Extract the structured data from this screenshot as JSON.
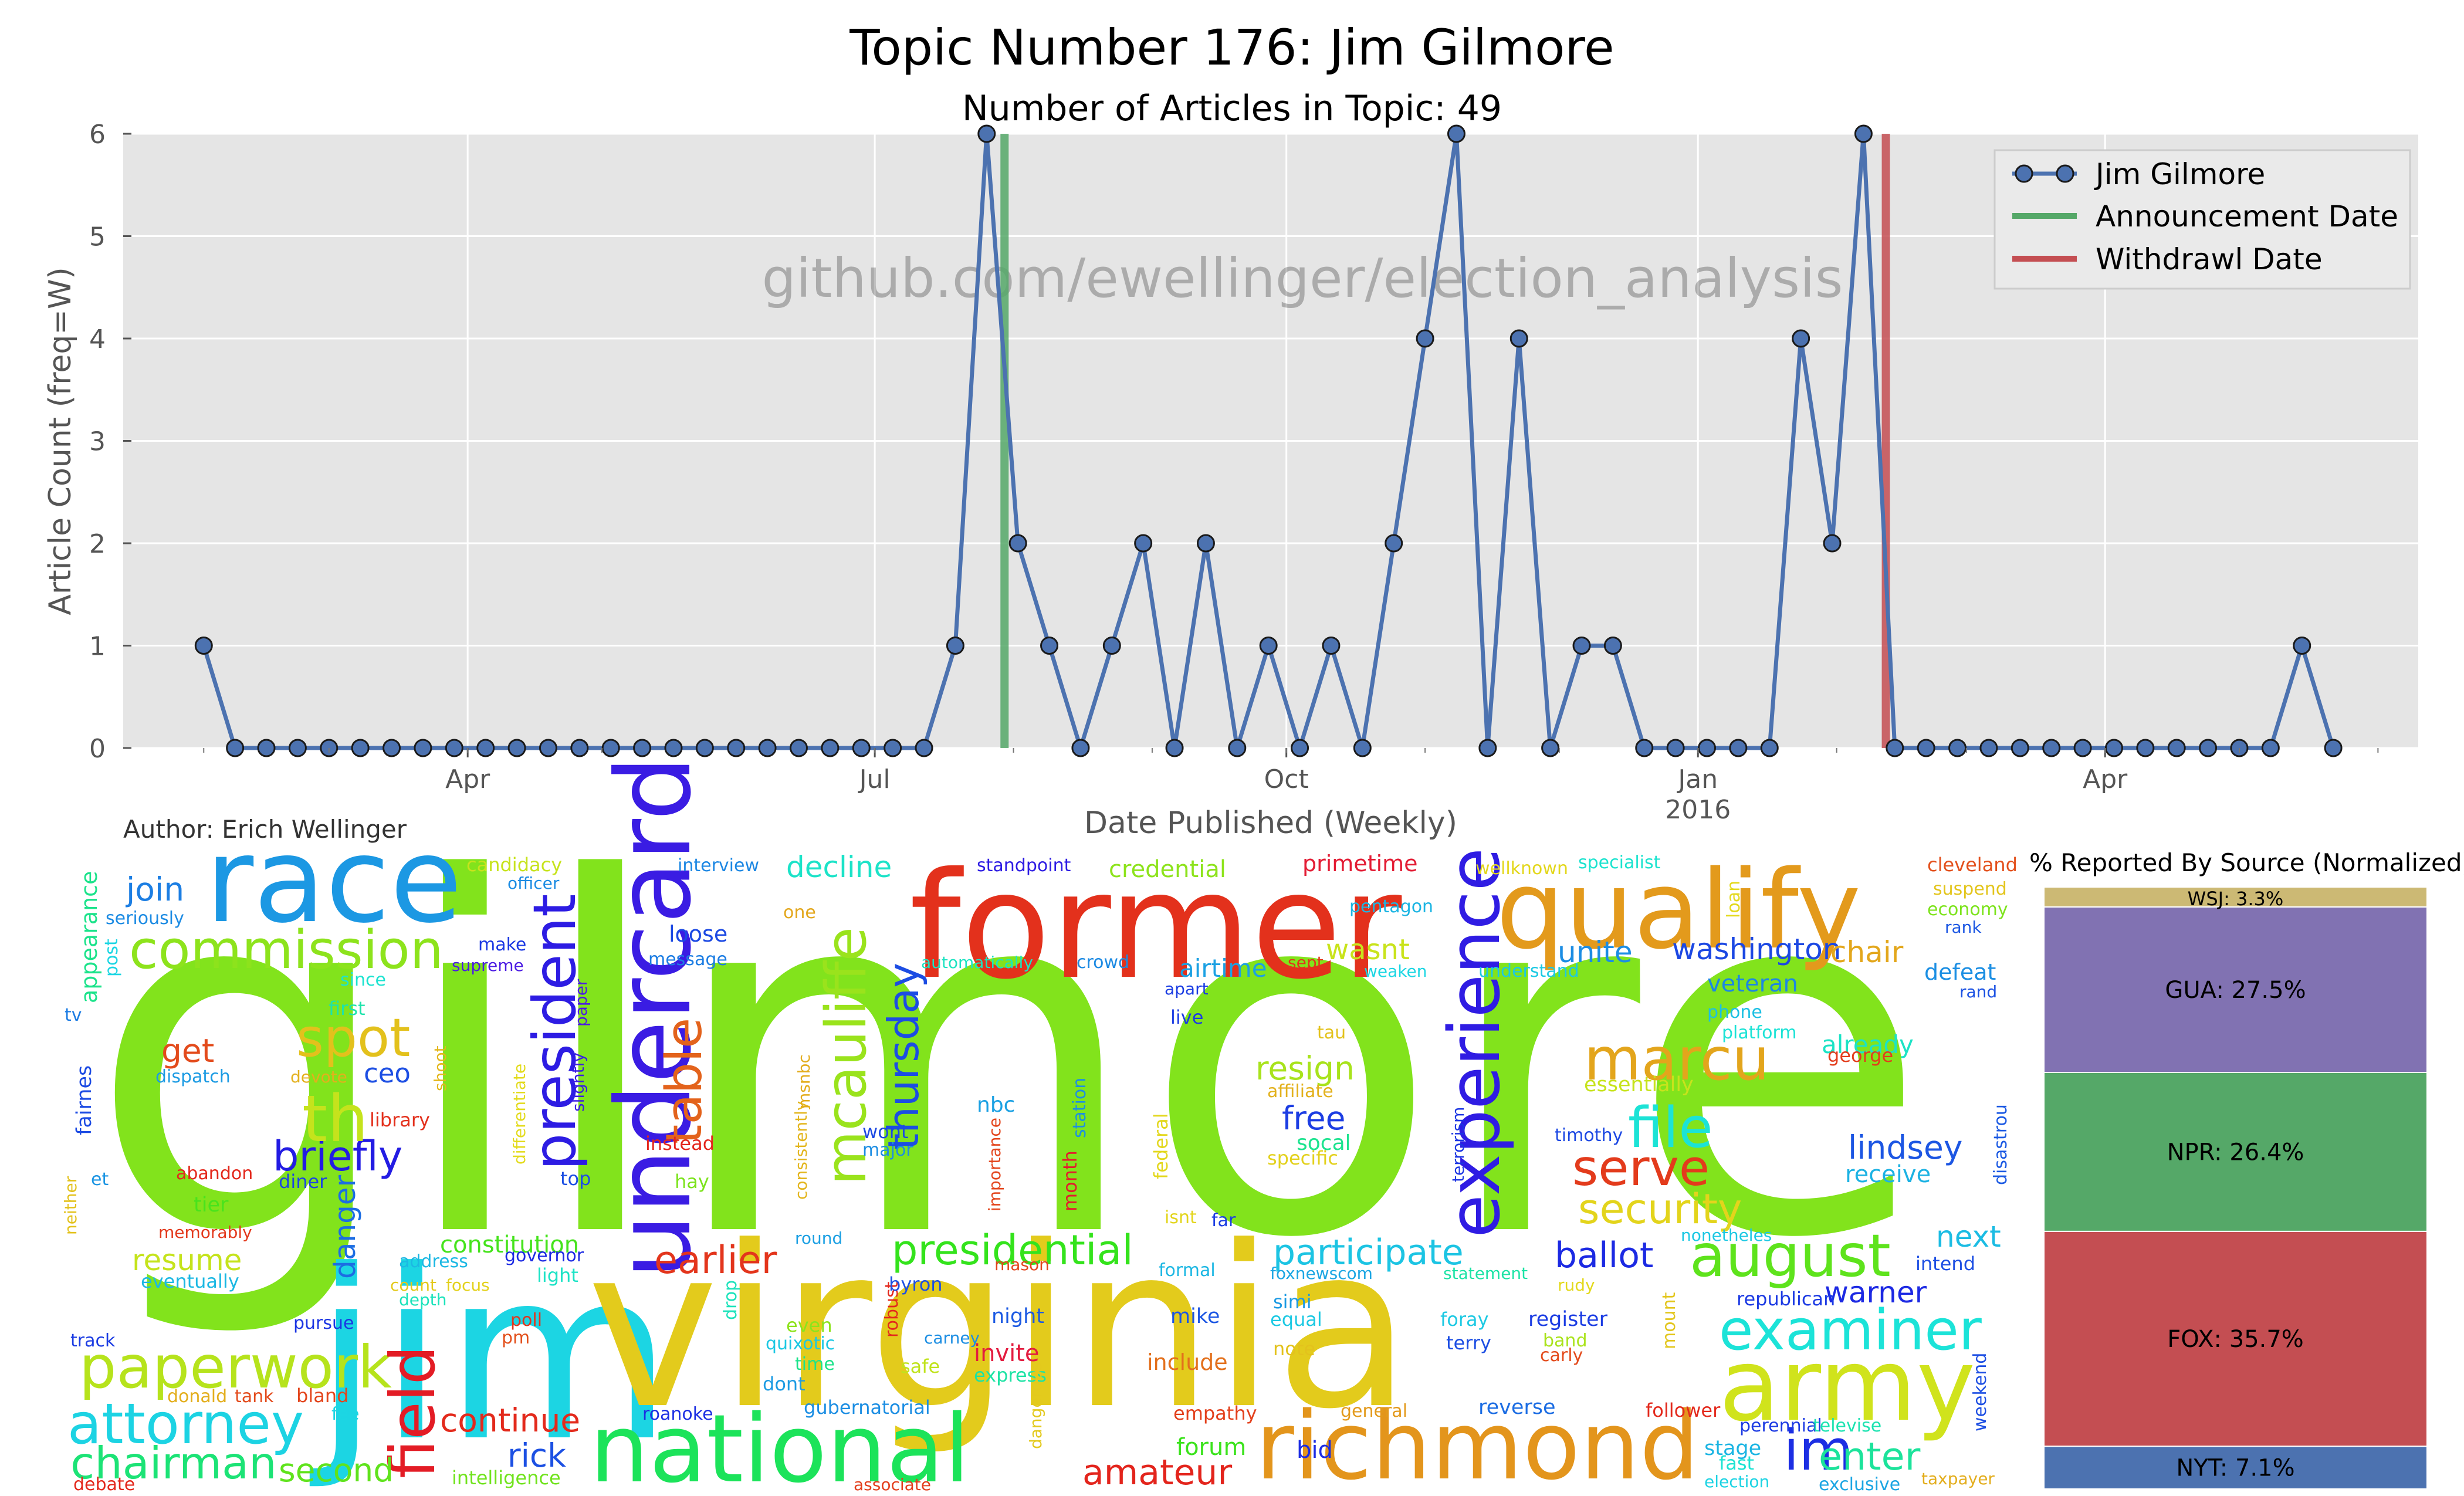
{
  "chart_data": [
    {
      "type": "line",
      "title": "Topic Number 176: Jim Gilmore",
      "subtitle": "Number of Articles in Topic: 49",
      "watermark": "github.com/ewellinger/election_analysis",
      "xlabel": "Date Published (Weekly)",
      "ylabel": "Article Count (freq=W)",
      "ylim": [
        0,
        6
      ],
      "yticks": [
        "0",
        "1",
        "2",
        "3",
        "4",
        "5",
        "6"
      ],
      "xlim": [
        "2015-01-14",
        "2016-06-10"
      ],
      "xticks": [
        {
          "date": "2015-04-01",
          "label": "Apr",
          "sublabel": ""
        },
        {
          "date": "2015-07-01",
          "label": "Jul",
          "sublabel": ""
        },
        {
          "date": "2015-10-01",
          "label": "Oct",
          "sublabel": ""
        },
        {
          "date": "2016-01-01",
          "label": "Jan",
          "sublabel": "2016"
        },
        {
          "date": "2016-04-01",
          "label": "Apr",
          "sublabel": ""
        }
      ],
      "grid": true,
      "legend_position": "top-right",
      "series": [
        {
          "name": "Jim Gilmore",
          "color": "#4c72b0",
          "x": [
            "2015-02-01",
            "2015-02-08",
            "2015-02-15",
            "2015-02-22",
            "2015-03-01",
            "2015-03-08",
            "2015-03-15",
            "2015-03-22",
            "2015-03-29",
            "2015-04-05",
            "2015-04-12",
            "2015-04-19",
            "2015-04-26",
            "2015-05-03",
            "2015-05-10",
            "2015-05-17",
            "2015-05-24",
            "2015-05-31",
            "2015-06-07",
            "2015-06-14",
            "2015-06-21",
            "2015-06-28",
            "2015-07-05",
            "2015-07-12",
            "2015-07-19",
            "2015-07-26",
            "2015-08-02",
            "2015-08-09",
            "2015-08-16",
            "2015-08-23",
            "2015-08-30",
            "2015-09-06",
            "2015-09-13",
            "2015-09-20",
            "2015-09-27",
            "2015-10-04",
            "2015-10-11",
            "2015-10-18",
            "2015-10-25",
            "2015-11-01",
            "2015-11-08",
            "2015-11-15",
            "2015-11-22",
            "2015-11-29",
            "2015-12-06",
            "2015-12-13",
            "2015-12-20",
            "2015-12-27",
            "2016-01-03",
            "2016-01-10",
            "2016-01-17",
            "2016-01-24",
            "2016-01-31",
            "2016-02-07",
            "2016-02-14",
            "2016-02-21",
            "2016-02-28",
            "2016-03-06",
            "2016-03-13",
            "2016-03-20",
            "2016-03-27",
            "2016-04-03",
            "2016-04-10",
            "2016-04-17",
            "2016-04-24",
            "2016-05-01",
            "2016-05-08",
            "2016-05-15",
            "2016-05-22"
          ],
          "values": [
            1,
            0,
            0,
            0,
            0,
            0,
            0,
            0,
            0,
            0,
            0,
            0,
            0,
            0,
            0,
            0,
            0,
            0,
            0,
            0,
            0,
            0,
            0,
            0,
            1,
            6,
            2,
            1,
            0,
            1,
            2,
            0,
            2,
            0,
            1,
            0,
            1,
            0,
            2,
            4,
            6,
            0,
            4,
            0,
            1,
            1,
            0,
            0,
            0,
            0,
            0,
            4,
            2,
            6,
            0,
            0,
            0,
            0,
            0,
            0,
            0,
            0,
            0,
            0,
            0,
            0,
            0,
            1,
            0
          ]
        }
      ],
      "events": [
        {
          "name": "Announcement Date",
          "date": "2015-07-30",
          "color": "#55a868"
        },
        {
          "name": "Withdrawl Date",
          "date": "2016-02-12",
          "color": "#c44e52"
        }
      ]
    },
    {
      "type": "bar",
      "title": "% Reported By Source (Normalized)",
      "categories": [
        "NYT",
        "FOX",
        "NPR",
        "GUA",
        "WSJ"
      ],
      "values": [
        7.1,
        35.7,
        26.4,
        27.5,
        3.3
      ],
      "labels": [
        "NYT: 7.1%",
        "FOX: 35.7%",
        "NPR: 26.4%",
        "GUA: 27.5%",
        "WSJ: 3.3%"
      ],
      "colors": [
        "#4c72b0",
        "#c44e52",
        "#55a868",
        "#8172b2",
        "#ccb974"
      ],
      "stacked": true
    }
  ],
  "author": "Author: Erich Wellinger",
  "wordcloud": {
    "words": [
      {
        "t": "gilmore",
        "c": "#82e31c"
      },
      {
        "t": "jim",
        "c": "#1cd5e3"
      },
      {
        "t": "virginia",
        "c": "#e3cb1c"
      },
      {
        "t": "former",
        "c": "#e3311c"
      },
      {
        "t": "race",
        "c": "#1c98e3"
      },
      {
        "t": "qualify",
        "c": "#e39a1c"
      },
      {
        "t": "national",
        "c": "#1ce35a"
      },
      {
        "t": "undercard",
        "c": "#3a1ce3"
      },
      {
        "t": "army",
        "c": "#d0e31c"
      },
      {
        "t": "richmond",
        "c": "#e3951c"
      },
      {
        "t": "experience",
        "c": "#2f1ce3"
      },
      {
        "t": "commission",
        "c": "#8de31c"
      },
      {
        "t": "president",
        "c": "#2d1ce3"
      },
      {
        "t": "mcauliffe",
        "c": "#9ae31c"
      },
      {
        "t": "marcu",
        "c": "#e3a51c"
      },
      {
        "t": "august",
        "c": "#5ee31c"
      },
      {
        "t": "examiner",
        "c": "#1ce3d8"
      },
      {
        "t": "paperwork",
        "c": "#b6e31c"
      },
      {
        "t": "attorney",
        "c": "#1cd3e3"
      },
      {
        "t": "chairman",
        "c": "#1ce376"
      },
      {
        "t": "field",
        "c": "#e31c25"
      },
      {
        "t": "spot",
        "c": "#e3c11c"
      },
      {
        "t": "table",
        "c": "#e3631c"
      },
      {
        "t": "thursday",
        "c": "#1c4de3"
      },
      {
        "t": "serve",
        "c": "#e33b1c"
      },
      {
        "t": "file",
        "c": "#1ce3d6"
      },
      {
        "t": "security",
        "c": "#e3d41c"
      },
      {
        "t": "presidential",
        "c": "#34e31c"
      },
      {
        "t": "briefly",
        "c": "#231ce3"
      },
      {
        "t": "th",
        "c": "#c5e31c"
      },
      {
        "t": "earlier",
        "c": "#e3351c"
      },
      {
        "t": "participate",
        "c": "#1cc4e3"
      },
      {
        "t": "im",
        "c": "#1c2ee3"
      },
      {
        "t": "enter",
        "c": "#1ce39b"
      },
      {
        "t": "amateur",
        "c": "#e3241c"
      },
      {
        "t": "continue",
        "c": "#e32a1c"
      },
      {
        "t": "rick",
        "c": "#1c50e3"
      },
      {
        "t": "second",
        "c": "#5fe31c"
      },
      {
        "t": "ballot",
        "c": "#1c2ae3"
      },
      {
        "t": "lindsey",
        "c": "#1c56e3"
      },
      {
        "t": "resign",
        "c": "#a8e31c"
      },
      {
        "t": "free",
        "c": "#1c3de3"
      },
      {
        "t": "warner",
        "c": "#1c29e3"
      },
      {
        "t": "next",
        "c": "#1cbce3"
      },
      {
        "t": "decline",
        "c": "#1ce3c8"
      },
      {
        "t": "join",
        "c": "#1c7ee3"
      },
      {
        "t": "get",
        "c": "#e34b1c"
      },
      {
        "t": "ceo",
        "c": "#1c4ee3"
      },
      {
        "t": "washington",
        "c": "#1c48e3"
      },
      {
        "t": "unite",
        "c": "#1c8de3"
      },
      {
        "t": "chair",
        "c": "#e3a71c"
      },
      {
        "t": "resume",
        "c": "#c5e31c"
      },
      {
        "t": "constitution",
        "c": "#45e31c"
      },
      {
        "t": "danger",
        "c": "#1c6de3"
      },
      {
        "t": "invite",
        "c": "#e31c3f"
      },
      {
        "t": "include",
        "c": "#e3701c"
      },
      {
        "t": "airtime",
        "c": "#1ca1e3"
      },
      {
        "t": "credential",
        "c": "#8de31c"
      },
      {
        "t": "primetime",
        "c": "#e31c34"
      },
      {
        "t": "already",
        "c": "#1ce3c5"
      },
      {
        "t": "receive",
        "c": "#1cb2e3"
      },
      {
        "t": "forum",
        "c": "#3be31c"
      },
      {
        "t": "veteran",
        "c": "#1c87e3"
      },
      {
        "t": "loose",
        "c": "#1c49e3"
      },
      {
        "t": "wasnt",
        "c": "#c9e31c"
      },
      {
        "t": "defeat",
        "c": "#1c8fe3"
      },
      {
        "t": "stage",
        "c": "#1cb5e3"
      },
      {
        "t": "bid",
        "c": "#1c2ce3"
      },
      {
        "t": "essentially",
        "c": "#c7e31c"
      },
      {
        "t": "republican",
        "c": "#1c3ae3"
      },
      {
        "t": "appearance",
        "c": "#1ce38b"
      },
      {
        "t": "candidacy",
        "c": "#c7e31c"
      },
      {
        "t": "interview",
        "c": "#1c87e3"
      },
      {
        "t": "standpoint",
        "c": "#2d1ce3"
      },
      {
        "t": "wellknown",
        "c": "#e3d71c"
      },
      {
        "t": "specialist",
        "c": "#1ce3cf"
      },
      {
        "t": "cleveland",
        "c": "#e3501c"
      },
      {
        "t": "suspend",
        "c": "#e3c51c"
      },
      {
        "t": "economy",
        "c": "#7de31c"
      },
      {
        "t": "one",
        "c": "#e3a71c"
      },
      {
        "t": "loan",
        "c": "#e3d91c"
      },
      {
        "t": "pentagon",
        "c": "#1cb5e3"
      },
      {
        "t": "officer",
        "c": "#1c8ce3"
      },
      {
        "t": "seriously",
        "c": "#1c8be3"
      },
      {
        "t": "make",
        "c": "#1c39e3"
      },
      {
        "t": "message",
        "c": "#1c7de3"
      },
      {
        "t": "automatically",
        "c": "#1ce3c1"
      },
      {
        "t": "crowd",
        "c": "#1c8ae3"
      },
      {
        "t": "sept",
        "c": "#e3351c"
      },
      {
        "t": "weaken",
        "c": "#1cd6e3"
      },
      {
        "t": "understand",
        "c": "#1cc9e3"
      },
      {
        "t": "rank",
        "c": "#1c57e3"
      },
      {
        "t": "rand",
        "c": "#1c52e3"
      },
      {
        "t": "post",
        "c": "#1cd6e3"
      },
      {
        "t": "supreme",
        "c": "#4c1ce3"
      },
      {
        "t": "since",
        "c": "#1ce3d0"
      },
      {
        "t": "paper",
        "c": "#4d1ce3"
      },
      {
        "t": "apart",
        "c": "#1c3ee3"
      },
      {
        "t": "phone",
        "c": "#1cc0e3"
      },
      {
        "t": "platform",
        "c": "#1ce3d6"
      },
      {
        "t": "tv",
        "c": "#1c7ce3"
      },
      {
        "t": "first",
        "c": "#1ce3ab"
      },
      {
        "t": "live",
        "c": "#1c3ce3"
      },
      {
        "t": "tau",
        "c": "#e3c21c"
      },
      {
        "t": "george",
        "c": "#e33d1c"
      },
      {
        "t": "dispatch",
        "c": "#1c9be3"
      },
      {
        "t": "devote",
        "c": "#e3b01c"
      },
      {
        "t": "shoot",
        "c": "#e3b71c"
      },
      {
        "t": "differentiate",
        "c": "#e3db1c"
      },
      {
        "t": "slightly",
        "c": "#3a1ce3"
      },
      {
        "t": "station",
        "c": "#1c8fe3"
      },
      {
        "t": "affiliate",
        "c": "#e3b11c"
      },
      {
        "t": "terrorism",
        "c": "#1c36e3"
      },
      {
        "t": "timothy",
        "c": "#1c48e3"
      },
      {
        "t": "fairnes",
        "c": "#1c4be3"
      },
      {
        "t": "library",
        "c": "#e3301c"
      },
      {
        "t": "nbc",
        "c": "#1ca1e3"
      },
      {
        "t": "socal",
        "c": "#1ce38f"
      },
      {
        "t": "specific",
        "c": "#e3d11c"
      },
      {
        "t": "disastrou",
        "c": "#1c5ae3"
      },
      {
        "t": "instead",
        "c": "#e3261c"
      },
      {
        "t": "wont",
        "c": "#1c49e3"
      },
      {
        "t": "major",
        "c": "#1c8de3"
      },
      {
        "t": "consistently",
        "c": "#e3b51c"
      },
      {
        "t": "msnbc",
        "c": "#e3ac1c"
      },
      {
        "t": "importance",
        "c": "#e3451c"
      },
      {
        "t": "month",
        "c": "#e31c2d"
      },
      {
        "t": "federal",
        "c": "#e3d71c"
      },
      {
        "t": "abandon",
        "c": "#e3281c"
      },
      {
        "t": "diner",
        "c": "#1c46e3"
      },
      {
        "t": "top",
        "c": "#1c4fe3"
      },
      {
        "t": "hay",
        "c": "#7ce31c"
      },
      {
        "t": "et",
        "c": "#1c95e3"
      },
      {
        "t": "neither",
        "c": "#e3c21c"
      },
      {
        "t": "isnt",
        "c": "#e3d51c"
      },
      {
        "t": "far",
        "c": "#1c3ee3"
      },
      {
        "t": "memorably",
        "c": "#e3391c"
      },
      {
        "t": "tier",
        "c": "#49e31c"
      },
      {
        "t": "address",
        "c": "#1cb8e3"
      },
      {
        "t": "governor",
        "c": "#1c2ae3"
      },
      {
        "t": "eventually",
        "c": "#1cb8e3"
      },
      {
        "t": "round",
        "c": "#1ca0e3"
      },
      {
        "t": "mason",
        "c": "#e3451c"
      },
      {
        "t": "formal",
        "c": "#1cb7e3"
      },
      {
        "t": "foxnewscom",
        "c": "#1ca6e3"
      },
      {
        "t": "statement",
        "c": "#1ce3a5"
      },
      {
        "t": "nonetheles",
        "c": "#1cc8e3"
      },
      {
        "t": "intend",
        "c": "#1c4ee3"
      },
      {
        "t": "count",
        "c": "#e3c91c"
      },
      {
        "t": "focus",
        "c": "#e3d11c"
      },
      {
        "t": "light",
        "c": "#1ce3c6"
      },
      {
        "t": "depth",
        "c": "#1ce3bb"
      },
      {
        "t": "poll",
        "c": "#e3351c"
      },
      {
        "t": "robust",
        "c": "#e3281c"
      },
      {
        "t": "byron",
        "c": "#1c4fe3"
      },
      {
        "t": "drop",
        "c": "#1ce3bb"
      },
      {
        "t": "night",
        "c": "#1c5ae3"
      },
      {
        "t": "mike",
        "c": "#1c56e3"
      },
      {
        "t": "simi",
        "c": "#1c9ae3"
      },
      {
        "t": "foray",
        "c": "#1cc9e3"
      },
      {
        "t": "register",
        "c": "#1c3de3"
      },
      {
        "t": "rudy",
        "c": "#e3d91c"
      },
      {
        "t": "track",
        "c": "#1c3de3"
      },
      {
        "t": "pm",
        "c": "#e3501c"
      },
      {
        "t": "even",
        "c": "#8de31c"
      },
      {
        "t": "carney",
        "c": "#1c8ee3"
      },
      {
        "t": "equal",
        "c": "#1cc9e3"
      },
      {
        "t": "terry",
        "c": "#1c4ee3"
      },
      {
        "t": "band",
        "c": "#aae31c"
      },
      {
        "t": "carly",
        "c": "#e34b1c"
      },
      {
        "t": "mount",
        "c": "#e3c61c"
      },
      {
        "t": "quixotic",
        "c": "#1cc8e3"
      },
      {
        "t": "safe",
        "c": "#c0e31c"
      },
      {
        "t": "express",
        "c": "#1ce3a4"
      },
      {
        "t": "note",
        "c": "#e3c21c"
      },
      {
        "t": "donald",
        "c": "#e3ae1c"
      },
      {
        "t": "tank",
        "c": "#e34b1c"
      },
      {
        "t": "bland",
        "c": "#e3451c"
      },
      {
        "t": "time",
        "c": "#1ce38b"
      },
      {
        "t": "dont",
        "c": "#1c9be3"
      },
      {
        "t": "empathy",
        "c": "#e3401c"
      },
      {
        "t": "fee",
        "c": "#1cd6e3"
      },
      {
        "t": "pursue",
        "c": "#1c36e3"
      },
      {
        "t": "gubernatorial",
        "c": "#1c8ee3"
      },
      {
        "t": "general",
        "c": "#e39a1c"
      },
      {
        "t": "reverse",
        "c": "#1c6de3"
      },
      {
        "t": "follower",
        "c": "#e3291c"
      },
      {
        "t": "perennial",
        "c": "#1c3ae3"
      },
      {
        "t": "televise",
        "c": "#1ce3b1"
      },
      {
        "t": "weekend",
        "c": "#1c4ee3"
      },
      {
        "t": "roanoke",
        "c": "#1c2fe3"
      },
      {
        "t": "dangerous",
        "c": "#e3c91c"
      },
      {
        "t": "fast",
        "c": "#1ce3d3"
      },
      {
        "t": "intelligence",
        "c": "#70e31c"
      },
      {
        "t": "debate",
        "c": "#e3281c"
      },
      {
        "t": "associate",
        "c": "#e33e1c"
      },
      {
        "t": "election",
        "c": "#1cd3e3"
      },
      {
        "t": "exclusive",
        "c": "#1ca6e3"
      },
      {
        "t": "taxpayer",
        "c": "#e3ad1c"
      }
    ]
  }
}
